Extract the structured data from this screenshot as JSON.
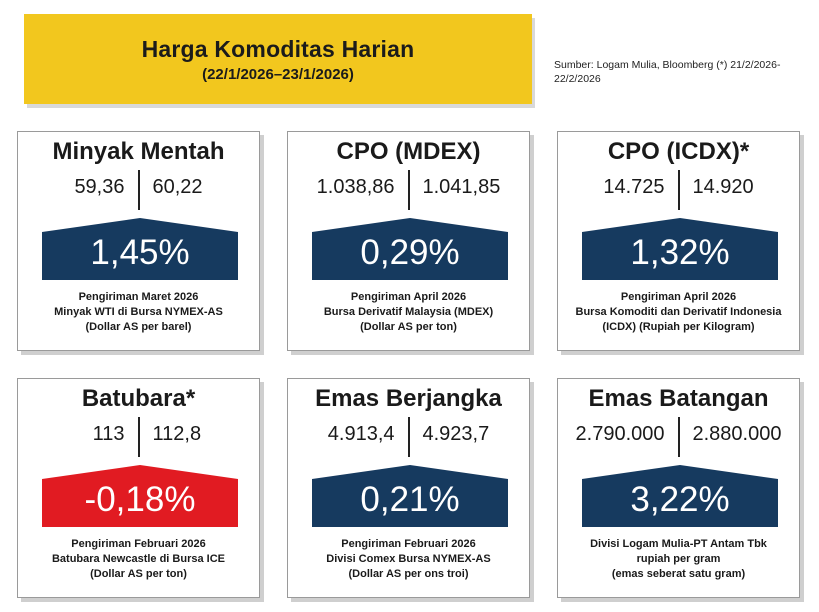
{
  "header": {
    "title": "Harga Komoditas Harian",
    "date_range": "(22/1/2026–23/1/2026)"
  },
  "source": "Sumber: Logam Mulia, Bloomberg (*) 21/2/2026-22/2/2026",
  "colors": {
    "yellow": "#f2c71e",
    "navy": "#163a5f",
    "red": "#e11b22"
  },
  "cards": [
    {
      "title": "Minyak Mentah",
      "prev": "59,36",
      "curr": "60,22",
      "change": "1,45%",
      "direction": "up",
      "desc": [
        "Pengiriman Maret 2026",
        "Minyak WTI di Bursa NYMEX-AS",
        "(Dollar AS per barel)"
      ]
    },
    {
      "title": "CPO (MDEX)",
      "prev": "1.038,86",
      "curr": "1.041,85",
      "change": "0,29%",
      "direction": "up",
      "desc": [
        "Pengiriman April 2026",
        "Bursa Derivatif Malaysia (MDEX)",
        "(Dollar AS per ton)"
      ]
    },
    {
      "title": "CPO (ICDX)*",
      "prev": "14.725",
      "curr": "14.920",
      "change": "1,32%",
      "direction": "up",
      "desc": [
        "Pengiriman April 2026",
        "Bursa Komoditi dan Derivatif Indonesia",
        "(ICDX) (Rupiah per Kilogram)"
      ]
    },
    {
      "title": "Batubara*",
      "prev": "113",
      "curr": "112,8",
      "change": "-0,18%",
      "direction": "down",
      "desc": [
        "Pengiriman Februari 2026",
        "Batubara Newcastle di Bursa ICE",
        "(Dollar AS per ton)"
      ]
    },
    {
      "title": "Emas Berjangka",
      "prev": "4.913,4",
      "curr": "4.923,7",
      "change": "0,21%",
      "direction": "up",
      "desc": [
        "Pengiriman Februari 2026",
        "Divisi Comex Bursa NYMEX-AS",
        "(Dollar AS per ons troi)"
      ]
    },
    {
      "title": "Emas Batangan",
      "prev": "2.790.000",
      "curr": "2.880.000",
      "change": "3,22%",
      "direction": "up",
      "desc": [
        "Divisi Logam Mulia-PT Antam Tbk",
        "rupiah per gram",
        "(emas seberat satu gram)"
      ]
    }
  ]
}
